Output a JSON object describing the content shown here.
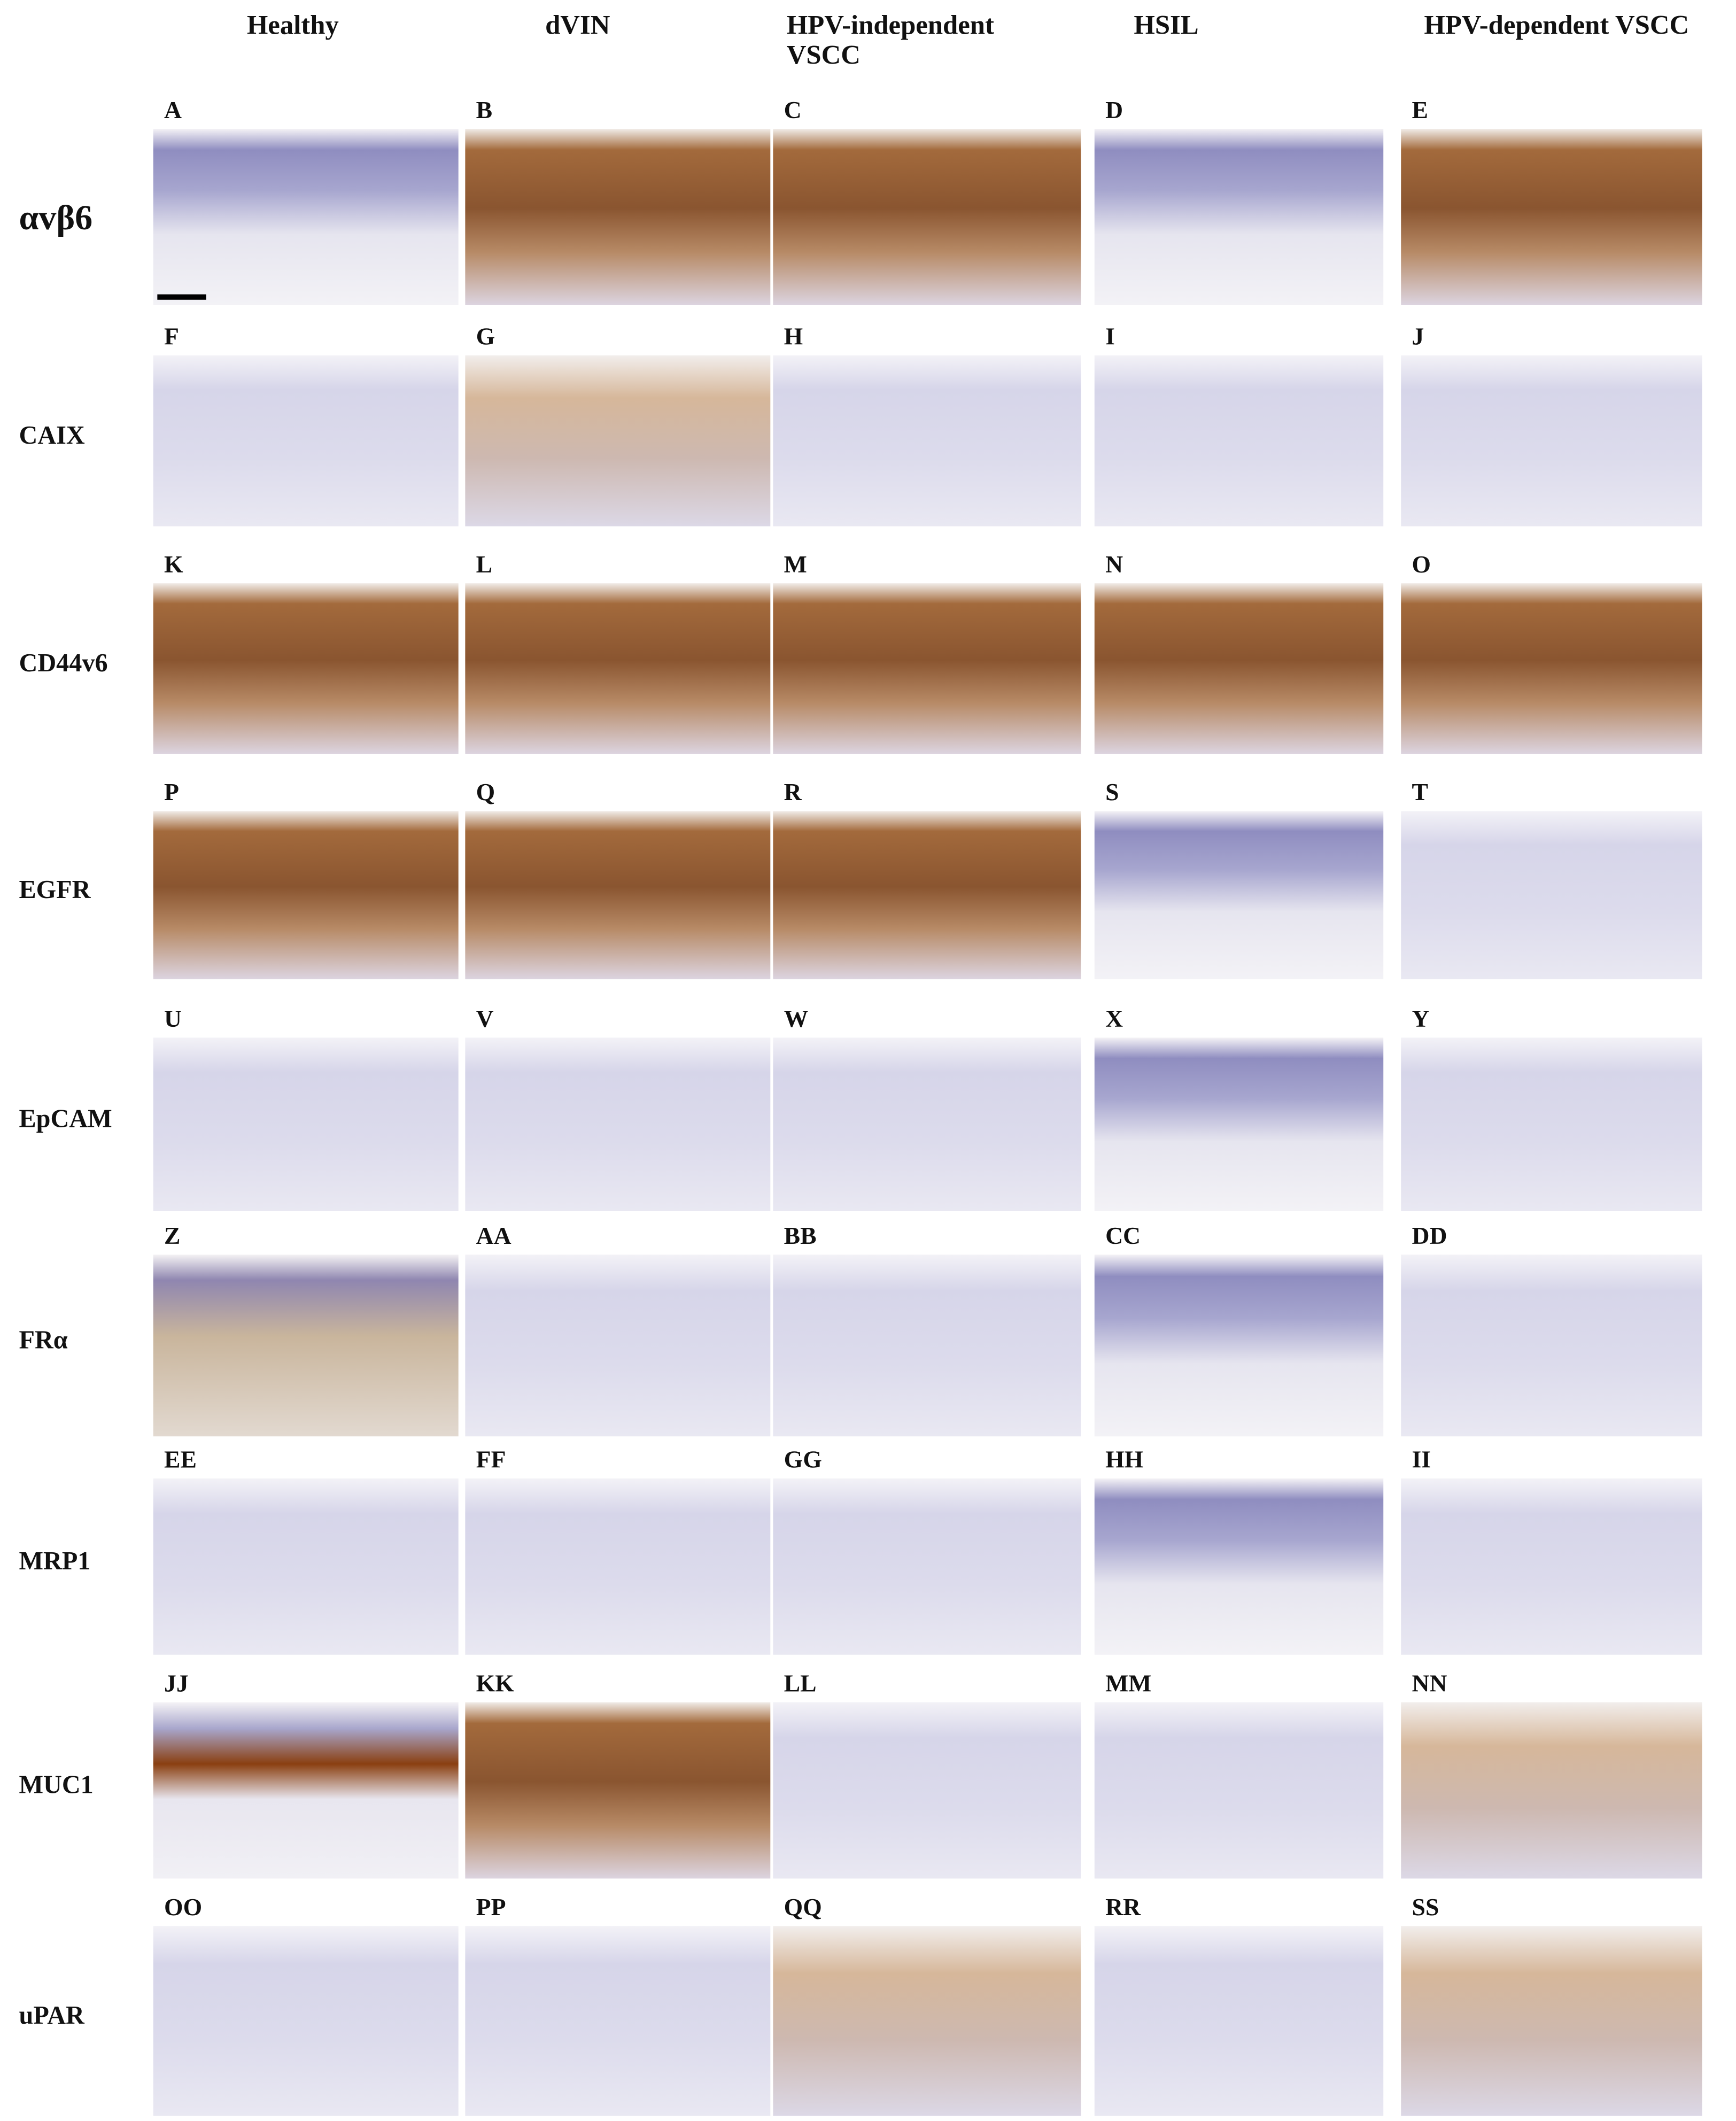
{
  "columns": [
    "Healthy",
    "dVIN",
    "HPV-independent VSCC",
    "HSIL",
    "HPV-dependent VSCC"
  ],
  "rows": [
    {
      "label": "αvβ6",
      "panels": [
        "A",
        "B",
        "C",
        "D",
        "E"
      ]
    },
    {
      "label": "CAIX",
      "panels": [
        "F",
        "G",
        "H",
        "I",
        "J"
      ]
    },
    {
      "label": "CD44v6",
      "panels": [
        "K",
        "L",
        "M",
        "N",
        "O"
      ]
    },
    {
      "label": "EGFR",
      "panels": [
        "P",
        "Q",
        "R",
        "S",
        "T"
      ]
    },
    {
      "label": "EpCAM",
      "panels": [
        "U",
        "V",
        "W",
        "X",
        "Y"
      ]
    },
    {
      "label": "FRα",
      "panels": [
        "Z",
        "AA",
        "BB",
        "CC",
        "DD"
      ]
    },
    {
      "label": "MRP1",
      "panels": [
        "EE",
        "FF",
        "GG",
        "HH",
        "II"
      ]
    },
    {
      "label": "MUC1",
      "panels": [
        "JJ",
        "KK",
        "LL",
        "MM",
        "NN"
      ]
    },
    {
      "label": "uPAR",
      "panels": [
        "OO",
        "PP",
        "QQ",
        "RR",
        "SS"
      ]
    }
  ]
}
